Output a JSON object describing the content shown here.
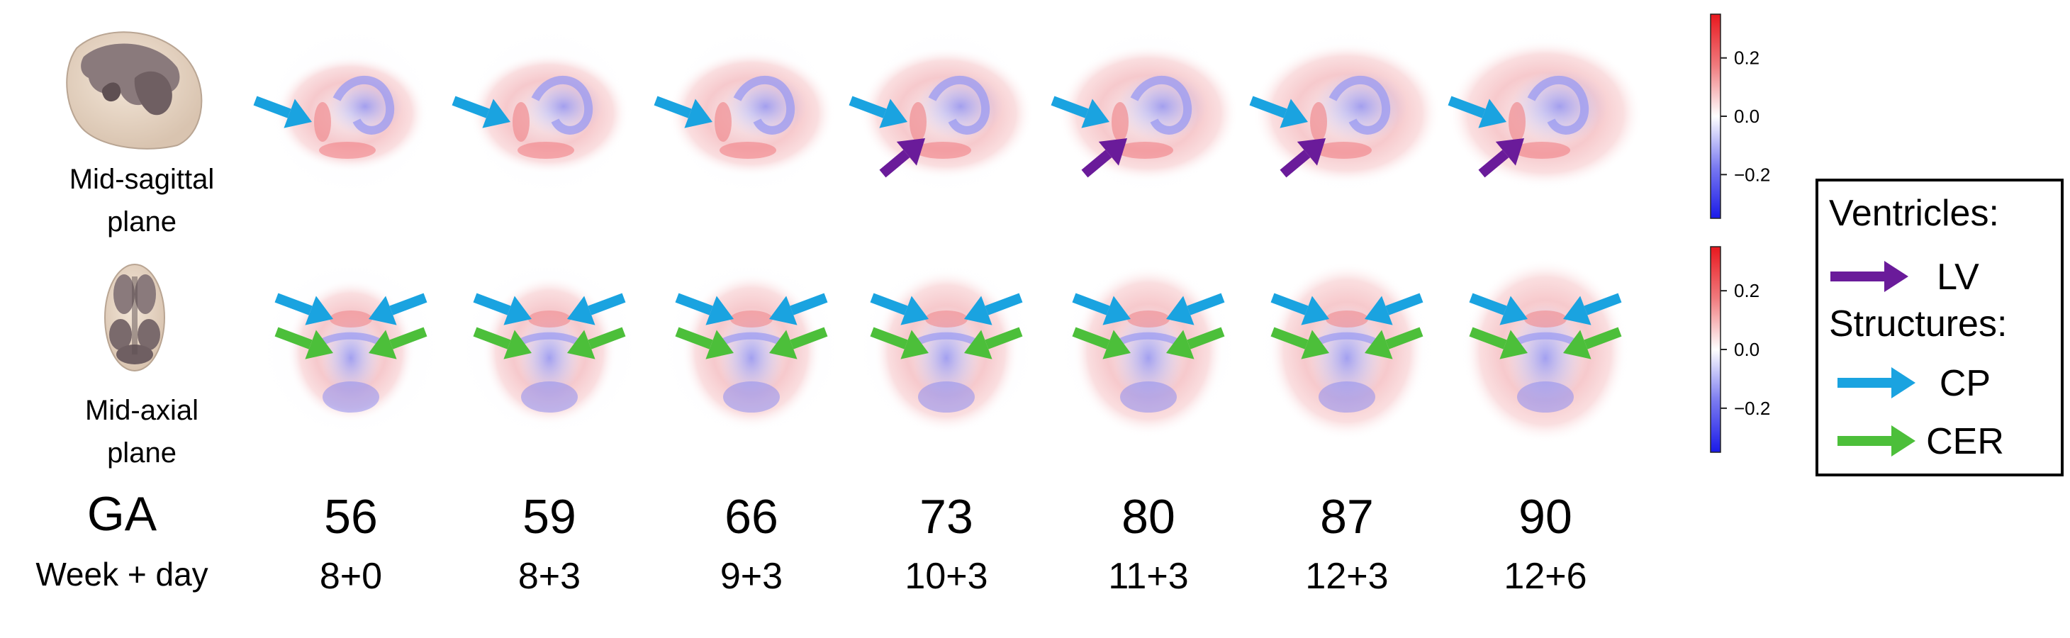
{
  "planes": [
    {
      "id": "sagittal",
      "label_lines": [
        "Mid-sagittal",
        "plane"
      ]
    },
    {
      "id": "axial",
      "label_lines": [
        "Mid-axial",
        "plane"
      ]
    }
  ],
  "timepoints": [
    {
      "ga": "56",
      "week_day": "8+0",
      "lv_arrow": false
    },
    {
      "ga": "59",
      "week_day": "8+3",
      "lv_arrow": false
    },
    {
      "ga": "66",
      "week_day": "9+3",
      "lv_arrow": false
    },
    {
      "ga": "73",
      "week_day": "10+3",
      "lv_arrow": true
    },
    {
      "ga": "80",
      "week_day": "11+3",
      "lv_arrow": true
    },
    {
      "ga": "87",
      "week_day": "12+3",
      "lv_arrow": true
    },
    {
      "ga": "90",
      "week_day": "12+6",
      "lv_arrow": true
    }
  ],
  "row_labels": {
    "ga": "GA",
    "week_day": "Week + day"
  },
  "colorbar": {
    "ticks": [
      {
        "value": 0.2,
        "label": "0.2"
      },
      {
        "value": 0.0,
        "label": "0.0"
      },
      {
        "value": -0.2,
        "label": "−0.2"
      }
    ],
    "range": [
      -0.35,
      0.35
    ],
    "colors": {
      "high": "#e8181e",
      "mid": "#ffffff",
      "low": "#1a1ae8"
    }
  },
  "legend": {
    "heading_ventricles": "Ventricles:",
    "heading_structures": "Structures:",
    "items": [
      {
        "key": "LV",
        "label": "LV",
        "color": "#6a1b9a"
      },
      {
        "key": "CP",
        "label": "CP",
        "color": "#1aa3e0"
      },
      {
        "key": "CER",
        "label": "CER",
        "color": "#4cbf3a"
      }
    ]
  },
  "arrow_colors": {
    "LV": "#6a1b9a",
    "CP": "#1aa3e0",
    "CER": "#4cbf3a"
  }
}
